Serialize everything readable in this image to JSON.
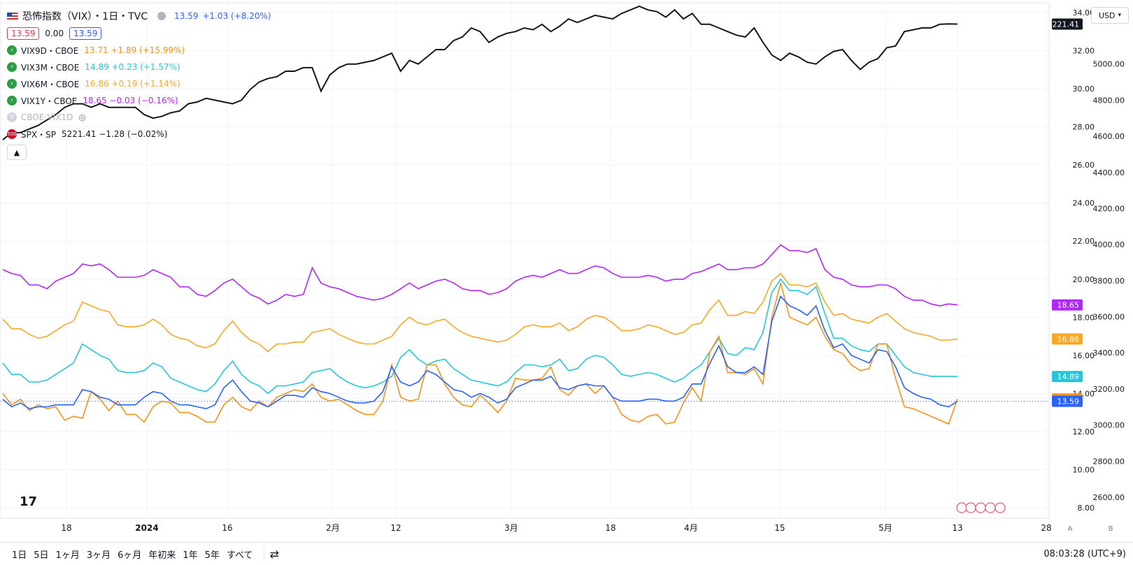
{
  "header": {
    "title": "恐怖指数（VIX）・1日・TVC",
    "last": "13.59",
    "change": "+1.03 (+8.20%)",
    "boxes": [
      "13.59",
      "0.00",
      "13.59"
    ]
  },
  "legend": [
    {
      "name": "VIX9D・CBOE",
      "value": "13.71 +1.89 (+15.99%)",
      "color": "#f7931a"
    },
    {
      "name": "VIX3M・CBOE",
      "value": "14.89 +0.23 (+1.57%)",
      "color": "#26c6da"
    },
    {
      "name": "VIX6M・CBOE",
      "value": "16.86 +0.19 (+1.14%)",
      "color": "#f9a825"
    },
    {
      "name": "VIX1Y・CBOE",
      "value": "18.65 −0.03 (−0.16%)",
      "color": "#b026ff"
    },
    {
      "name": "CBOE:VIX1D",
      "value": "",
      "color": "#b2b5be"
    },
    {
      "name": "SPX・SP",
      "value": "5221.41 −1.28 (−0.02%)",
      "color": "#131722"
    }
  ],
  "legend_icons": [
    "arrow-icon",
    "arrow-icon",
    "arrow-icon",
    "arrow-icon",
    "hidden-eye-icon",
    "badge-500-icon"
  ],
  "spx_badge": "500",
  "vix1d_letter": "V",
  "currency": "USD",
  "bottom": {
    "ranges": [
      "1日",
      "5日",
      "1ヶ月",
      "3ヶ月",
      "6ヶ月",
      "年初来",
      "1年",
      "5年",
      "すべて"
    ],
    "time": "08:03:28 (UTC+9)"
  },
  "axis_buttons": [
    "A",
    "B"
  ],
  "chart_data": {
    "type": "line",
    "x_ticks": [
      "18",
      "2024",
      "16",
      "2月",
      "12",
      "3月",
      "18",
      "4月",
      "15",
      "5月",
      "13",
      "28"
    ],
    "y_left": {
      "ticks": [
        8,
        10,
        12,
        14,
        16,
        18,
        20,
        22,
        24,
        26,
        28,
        30,
        32,
        34
      ]
    },
    "y_right": {
      "ticks": [
        2600,
        2800,
        3000,
        3200,
        3400,
        3600,
        3800,
        4000,
        4200,
        4400,
        4600,
        4800,
        5000,
        5200
      ]
    },
    "last_labels": [
      {
        "text": "18.65",
        "color": "#b026ff"
      },
      {
        "text": "16.86",
        "color": "#f9a825"
      },
      {
        "text": "14.89",
        "color": "#26c6da"
      },
      {
        "text": "13.71",
        "color": "#f7931a"
      },
      {
        "text": "13.59",
        "color": "#2962ff"
      },
      {
        "text": "5221.41",
        "color": "#131722"
      }
    ],
    "series": [
      {
        "name": "VIX1Y・CBOE",
        "color": "#b026ff",
        "axis": "left",
        "values": [
          20.5,
          20.3,
          20.2,
          19.7,
          19.7,
          19.5,
          19.9,
          20.1,
          20.3,
          20.8,
          20.7,
          20.8,
          20.5,
          20.1,
          20.1,
          20.1,
          20.2,
          20.5,
          20.3,
          20.1,
          19.6,
          19.6,
          19.2,
          19.1,
          19.4,
          19.8,
          20.0,
          19.6,
          19.2,
          19.0,
          18.7,
          18.9,
          19.2,
          19.1,
          19.2,
          20.6,
          19.8,
          19.6,
          19.5,
          19.3,
          19.1,
          19.0,
          18.9,
          19.0,
          19.2,
          19.5,
          19.8,
          19.5,
          19.7,
          19.9,
          20.0,
          19.8,
          19.5,
          19.4,
          19.4,
          19.2,
          19.3,
          19.5,
          19.9,
          20.1,
          20.2,
          20.1,
          20.3,
          20.5,
          20.3,
          20.3,
          20.5,
          20.7,
          20.6,
          20.3,
          20.1,
          20.1,
          20.1,
          20.2,
          20.1,
          19.9,
          20.0,
          20.0,
          20.3,
          20.4,
          20.6,
          20.8,
          20.5,
          20.5,
          20.6,
          20.6,
          20.8,
          21.3,
          21.8,
          21.5,
          21.5,
          21.4,
          21.6,
          20.5,
          20.1,
          20.0,
          19.7,
          19.6,
          19.6,
          19.7,
          19.7,
          19.5,
          19.1,
          18.9,
          18.9,
          18.7,
          18.6,
          18.7,
          18.65
        ]
      },
      {
        "name": "VIX6M・CBOE",
        "color": "#f9a825",
        "axis": "left",
        "values": [
          17.9,
          17.4,
          17.4,
          17.1,
          16.9,
          17.0,
          17.3,
          17.6,
          17.8,
          18.8,
          18.6,
          18.4,
          18.3,
          17.6,
          17.5,
          17.5,
          17.6,
          17.9,
          17.6,
          17.1,
          16.9,
          16.8,
          16.5,
          16.4,
          16.6,
          17.3,
          17.8,
          17.2,
          16.8,
          16.6,
          16.2,
          16.6,
          16.6,
          16.7,
          16.7,
          17.2,
          17.3,
          17.4,
          17.1,
          16.9,
          16.7,
          16.6,
          16.6,
          16.8,
          17.0,
          17.6,
          18.0,
          17.7,
          17.6,
          17.8,
          17.9,
          17.5,
          17.2,
          17.0,
          16.9,
          16.8,
          16.7,
          16.8,
          17.1,
          17.5,
          17.6,
          17.5,
          17.5,
          17.7,
          17.3,
          17.5,
          17.9,
          18.1,
          18.0,
          17.7,
          17.3,
          17.3,
          17.4,
          17.6,
          17.5,
          17.3,
          17.1,
          17.2,
          17.6,
          17.7,
          18.4,
          18.9,
          18.1,
          18.1,
          18.3,
          18.2,
          18.8,
          19.9,
          20.3,
          19.7,
          19.7,
          19.6,
          19.8,
          18.8,
          18.1,
          18.2,
          17.9,
          17.8,
          17.7,
          18.0,
          18.2,
          17.8,
          17.4,
          17.2,
          17.1,
          17.0,
          16.8,
          16.8,
          16.86
        ]
      },
      {
        "name": "VIX3M・CBOE",
        "color": "#26c6da",
        "axis": "left",
        "values": [
          15.6,
          15.0,
          15.0,
          14.6,
          14.6,
          14.7,
          15.0,
          15.3,
          15.6,
          16.6,
          16.3,
          16.0,
          15.8,
          15.2,
          15.1,
          15.1,
          15.2,
          15.6,
          15.4,
          14.8,
          14.6,
          14.4,
          14.2,
          14.1,
          14.5,
          15.2,
          15.7,
          15.0,
          14.6,
          14.4,
          14.0,
          14.4,
          14.4,
          14.5,
          14.6,
          15.1,
          15.2,
          15.3,
          14.9,
          14.6,
          14.4,
          14.3,
          14.4,
          14.6,
          14.9,
          15.9,
          16.3,
          15.8,
          15.5,
          15.7,
          15.8,
          15.3,
          15.0,
          14.7,
          14.6,
          14.5,
          14.4,
          14.6,
          15.1,
          15.5,
          15.5,
          15.4,
          15.5,
          15.8,
          15.2,
          15.3,
          15.8,
          16.0,
          15.9,
          15.5,
          15.0,
          14.9,
          15.0,
          15.1,
          15.0,
          14.8,
          14.6,
          14.8,
          15.2,
          15.5,
          16.2,
          16.9,
          16.1,
          16.0,
          16.4,
          16.3,
          17.2,
          19.3,
          20.0,
          19.4,
          19.4,
          19.2,
          19.6,
          18.2,
          16.9,
          16.9,
          16.5,
          16.3,
          16.2,
          16.6,
          16.6,
          16.0,
          15.4,
          15.1,
          15.0,
          14.9,
          14.9,
          14.9,
          14.89
        ]
      },
      {
        "name": "VIX9D・CBOE",
        "color": "#f7931a",
        "axis": "left",
        "values": [
          14.0,
          13.4,
          13.7,
          13.1,
          13.4,
          13.2,
          13.3,
          12.6,
          12.8,
          12.7,
          14.1,
          13.7,
          13.1,
          13.6,
          12.9,
          12.9,
          12.5,
          13.3,
          13.6,
          13.5,
          13.0,
          13.0,
          12.8,
          12.5,
          12.5,
          13.4,
          13.8,
          13.3,
          13.1,
          13.6,
          13.3,
          13.8,
          14.0,
          14.2,
          14.1,
          14.5,
          13.8,
          13.6,
          13.7,
          13.4,
          13.1,
          12.9,
          12.9,
          13.6,
          15.5,
          13.8,
          13.6,
          13.7,
          15.5,
          15.5,
          14.5,
          13.8,
          13.4,
          13.3,
          13.9,
          13.5,
          13.0,
          13.6,
          14.8,
          14.7,
          14.7,
          14.8,
          15.4,
          14.2,
          13.9,
          14.4,
          14.5,
          14.0,
          14.4,
          13.8,
          12.9,
          12.6,
          12.5,
          12.8,
          12.9,
          12.4,
          12.5,
          13.5,
          14.3,
          13.6,
          16.2,
          17.0,
          15.1,
          15.1,
          15.0,
          15.3,
          14.5,
          18.0,
          19.8,
          18.0,
          17.8,
          17.6,
          18.0,
          17.0,
          16.3,
          16.1,
          15.5,
          15.2,
          15.3,
          16.6,
          16.6,
          14.8,
          13.3,
          13.2,
          13.0,
          12.8,
          12.6,
          12.4,
          13.71
        ]
      },
      {
        "name": "恐怖指数（VIX）",
        "color": "#2962ff",
        "axis": "left",
        "values": [
          13.7,
          13.3,
          13.5,
          13.2,
          13.3,
          13.3,
          13.4,
          13.4,
          13.4,
          14.2,
          14.1,
          13.8,
          13.7,
          13.4,
          13.4,
          13.4,
          13.8,
          14.1,
          14.0,
          13.6,
          13.4,
          13.4,
          13.3,
          13.2,
          13.4,
          14.3,
          14.7,
          14.1,
          13.6,
          13.5,
          13.3,
          13.6,
          13.9,
          13.9,
          13.8,
          14.3,
          14.1,
          14.0,
          13.8,
          13.6,
          13.5,
          13.5,
          13.6,
          14.1,
          15.4,
          14.6,
          14.4,
          14.6,
          15.2,
          15.0,
          14.6,
          14.2,
          14.1,
          13.8,
          14.0,
          13.8,
          13.5,
          13.7,
          14.3,
          14.5,
          14.7,
          14.7,
          14.9,
          14.3,
          14.2,
          14.4,
          14.5,
          14.4,
          14.4,
          13.8,
          13.6,
          13.6,
          13.6,
          13.7,
          13.7,
          13.6,
          13.6,
          13.8,
          14.5,
          14.5,
          15.6,
          16.5,
          15.4,
          15.1,
          15.1,
          15.4,
          15.0,
          17.8,
          19.1,
          18.6,
          18.4,
          18.1,
          18.6,
          17.3,
          16.4,
          16.6,
          16.0,
          15.8,
          15.6,
          16.3,
          16.2,
          15.4,
          14.3,
          14.0,
          13.8,
          13.7,
          13.4,
          13.3,
          13.59
        ]
      },
      {
        "name": "SPX・SP",
        "color": "#131722",
        "axis": "right",
        "values": [
          4580,
          4620,
          4620,
          4640,
          4660,
          4690,
          4720,
          4760,
          4780,
          4780,
          4760,
          4780,
          4760,
          4760,
          4760,
          4760,
          4720,
          4700,
          4710,
          4730,
          4740,
          4780,
          4790,
          4810,
          4800,
          4790,
          4780,
          4800,
          4860,
          4900,
          4920,
          4930,
          4960,
          4960,
          4980,
          4980,
          4850,
          4940,
          4980,
          5000,
          5000,
          5010,
          5020,
          5040,
          5060,
          4960,
          5020,
          5000,
          5040,
          5080,
          5080,
          5130,
          5150,
          5200,
          5180,
          5120,
          5150,
          5170,
          5180,
          5200,
          5190,
          5220,
          5180,
          5210,
          5250,
          5230,
          5250,
          5270,
          5260,
          5250,
          5280,
          5300,
          5320,
          5300,
          5290,
          5260,
          5300,
          5250,
          5280,
          5220,
          5220,
          5200,
          5180,
          5160,
          5150,
          5200,
          5120,
          5050,
          5020,
          5060,
          5040,
          5010,
          5000,
          5040,
          5070,
          5080,
          5020,
          4970,
          5010,
          5030,
          5090,
          5100,
          5180,
          5190,
          5200,
          5200,
          5220,
          5222,
          5221.41
        ]
      }
    ]
  }
}
